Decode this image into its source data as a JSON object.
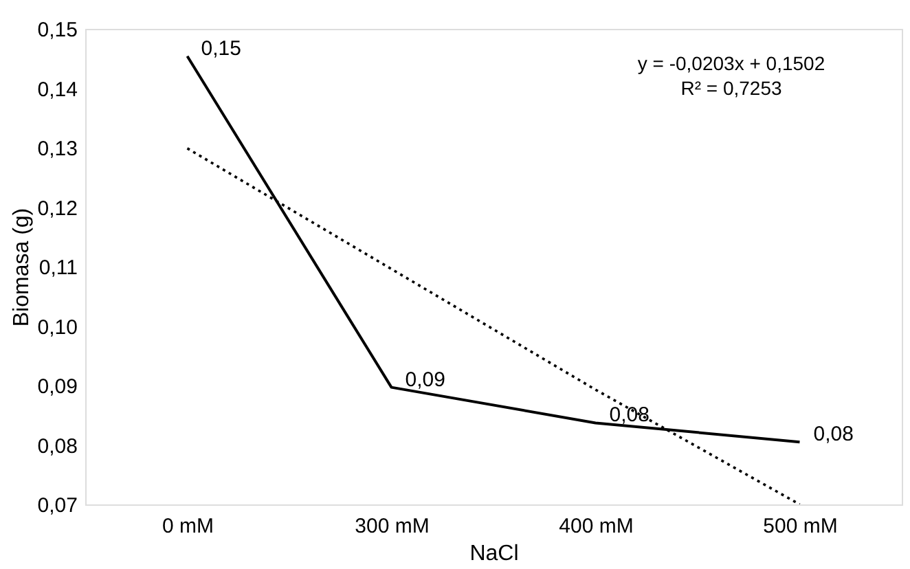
{
  "chart_data": {
    "type": "line",
    "xlabel": "NaCl",
    "ylabel": "Biomasa (g)",
    "categories": [
      "0 mM",
      "300 mM",
      "400 mM",
      "500 mM"
    ],
    "series": [
      {
        "color": "#000000",
        "values": [
          0.1454,
          0.0897,
          0.0837,
          0.0805
        ],
        "value_labels": [
          "0,15",
          "0,09",
          "0,08",
          "0,08"
        ],
        "line_style": "solid"
      },
      {
        "type": "line",
        "x": [
          "0 mM",
          "300 mM",
          "400 mM",
          "500 mM"
        ],
        "values": [
          0.1299,
          0.1096,
          0.0893,
          0.07
        ],
        "color": "#000000",
        "line_style": "dotted"
      }
    ],
    "annotations": [
      "y = -0,0203x + 0,1502",
      "R² = 0,7253"
    ],
    "ylim": [
      0.07,
      0.15
    ],
    "yticks": [
      {
        "value": 0.07,
        "label": "0,07"
      },
      {
        "value": 0.08,
        "label": "0,08"
      },
      {
        "value": 0.09,
        "label": "0,09"
      },
      {
        "value": 0.1,
        "label": "0,10"
      },
      {
        "value": 0.11,
        "label": "0,11"
      },
      {
        "value": 0.12,
        "label": "0,12"
      },
      {
        "value": 0.13,
        "label": "0,13"
      },
      {
        "value": 0.14,
        "label": "0,14"
      },
      {
        "value": 0.15,
        "label": "0,15"
      }
    ],
    "grid": false
  }
}
